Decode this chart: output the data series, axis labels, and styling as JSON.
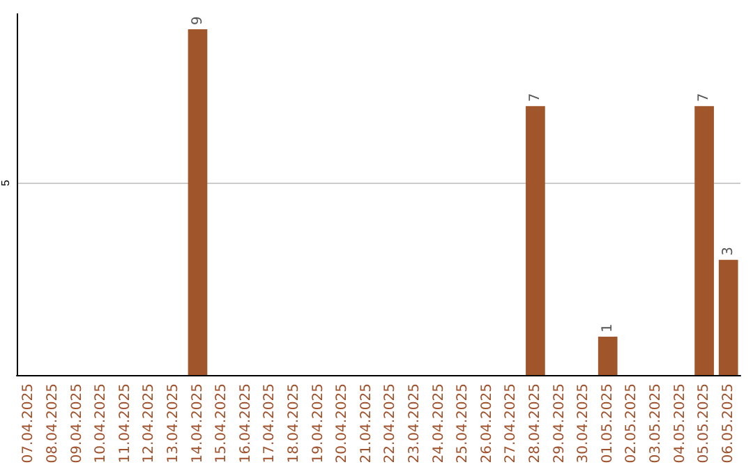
{
  "chart_data": {
    "type": "bar",
    "categories": [
      "07.04.2025",
      "08.04.2025",
      "09.04.2025",
      "10.04.2025",
      "11.04.2025",
      "12.04.2025",
      "13.04.2025",
      "14.04.2025",
      "15.04.2025",
      "16.04.2025",
      "17.04.2025",
      "18.04.2025",
      "19.04.2025",
      "20.04.2025",
      "21.04.2025",
      "22.04.2025",
      "23.04.2025",
      "24.04.2025",
      "25.04.2025",
      "26.04.2025",
      "27.04.2025",
      "28.04.2025",
      "29.04.2025",
      "30.04.2025",
      "01.05.2025",
      "02.05.2025",
      "03.05.2025",
      "04.05.2025",
      "05.05.2025",
      "06.05.2025"
    ],
    "values": [
      0,
      0,
      0,
      0,
      0,
      0,
      0,
      9,
      0,
      0,
      0,
      0,
      0,
      0,
      0,
      0,
      0,
      0,
      0,
      0,
      0,
      7,
      0,
      0,
      1,
      0,
      0,
      0,
      7,
      3
    ],
    "value_labels": [
      null,
      null,
      null,
      null,
      null,
      null,
      null,
      "9",
      null,
      null,
      null,
      null,
      null,
      null,
      null,
      null,
      null,
      null,
      null,
      null,
      null,
      "7",
      null,
      null,
      "1",
      null,
      null,
      null,
      "7",
      "3"
    ],
    "color": "#a0562a",
    "ylim": [
      0,
      9.4
    ],
    "yticks": [
      5
    ],
    "grid": "y"
  }
}
